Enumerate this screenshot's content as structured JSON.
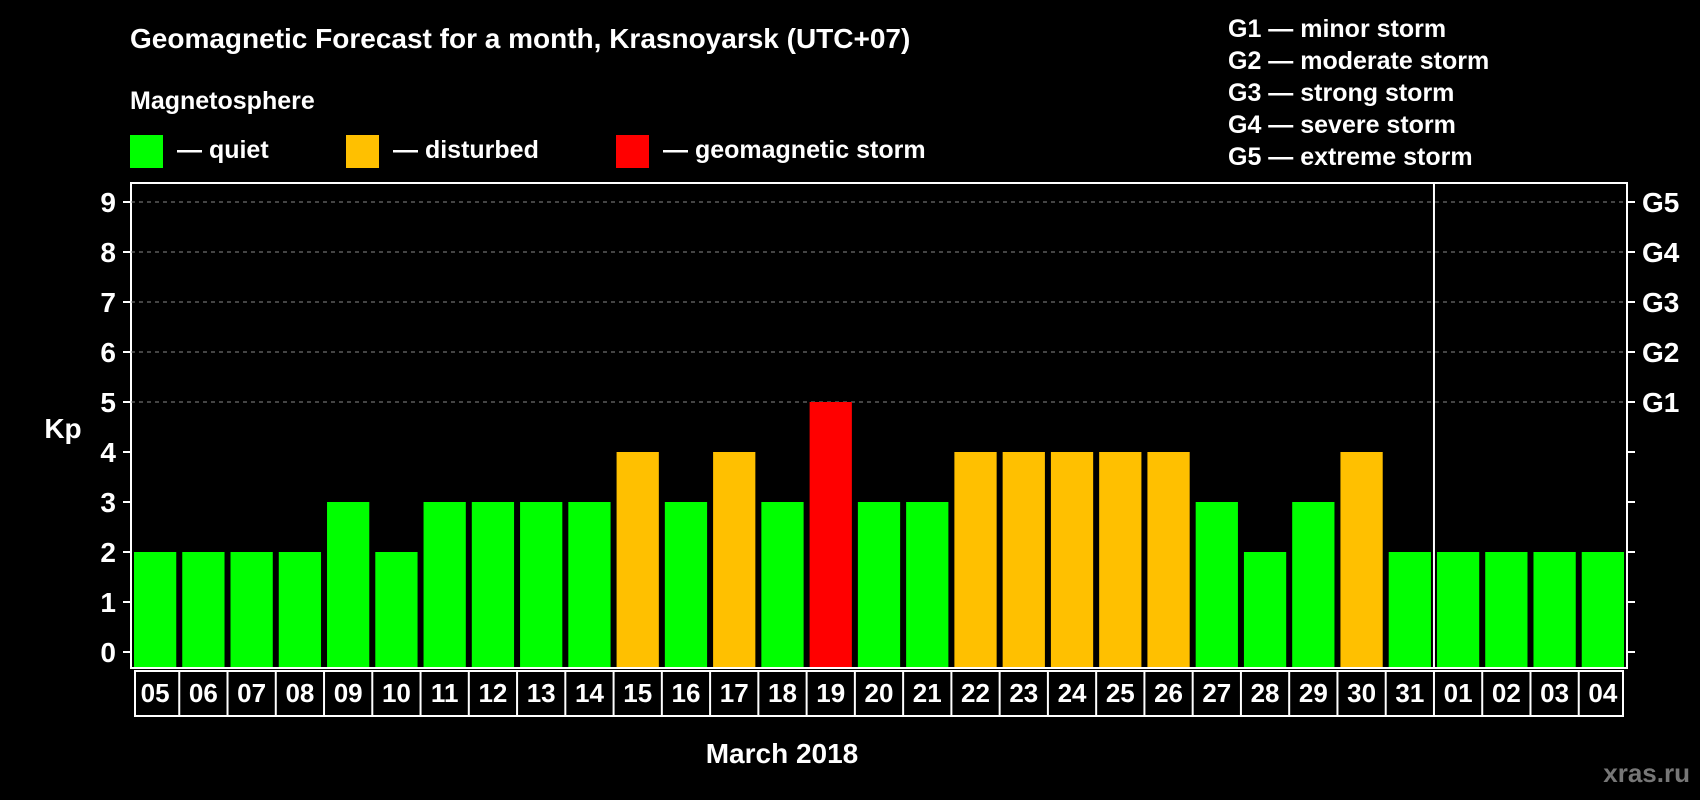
{
  "chart_data": {
    "type": "bar",
    "title": "Geomagnetic Forecast for a month, Krasnoyarsk (UTC+07)",
    "legend_heading": "Magnetosphere",
    "legend": [
      {
        "label": "— quiet",
        "color": "#00ff00"
      },
      {
        "label": "— disturbed",
        "color": "#ffc000"
      },
      {
        "label": "— geomagnetic storm",
        "color": "#ff0000"
      }
    ],
    "storm_scale": [
      "G1 — minor storm",
      "G2 — moderate storm",
      "G3 — strong storm",
      "G4 — severe storm",
      "G5 — extreme storm"
    ],
    "ylabel": "Kp",
    "xlabel": "March 2018",
    "ylim": [
      0,
      9
    ],
    "y_ticks": [
      "0",
      "1",
      "2",
      "3",
      "4",
      "5",
      "6",
      "7",
      "8",
      "9"
    ],
    "right_ticks": [
      {
        "kp": 5,
        "label": "G1"
      },
      {
        "kp": 6,
        "label": "G2"
      },
      {
        "kp": 7,
        "label": "G3"
      },
      {
        "kp": 8,
        "label": "G4"
      },
      {
        "kp": 9,
        "label": "G5"
      }
    ],
    "categories": [
      "05",
      "06",
      "07",
      "08",
      "09",
      "10",
      "11",
      "12",
      "13",
      "14",
      "15",
      "16",
      "17",
      "18",
      "19",
      "20",
      "21",
      "22",
      "23",
      "24",
      "25",
      "26",
      "27",
      "28",
      "29",
      "30",
      "31",
      "01",
      "02",
      "03",
      "04"
    ],
    "values": [
      2,
      2,
      2,
      2,
      3,
      2,
      3,
      3,
      3,
      3,
      4,
      3,
      4,
      3,
      5,
      3,
      3,
      4,
      4,
      4,
      4,
      4,
      3,
      2,
      3,
      4,
      2,
      2,
      2,
      2,
      2
    ],
    "month_divider_after": "31",
    "colors": {
      "quiet": "#00ff00",
      "disturbed": "#ffc000",
      "storm": "#ff0000",
      "grid": "#888888",
      "axis": "#ffffff"
    }
  },
  "watermark": "xras.ru"
}
